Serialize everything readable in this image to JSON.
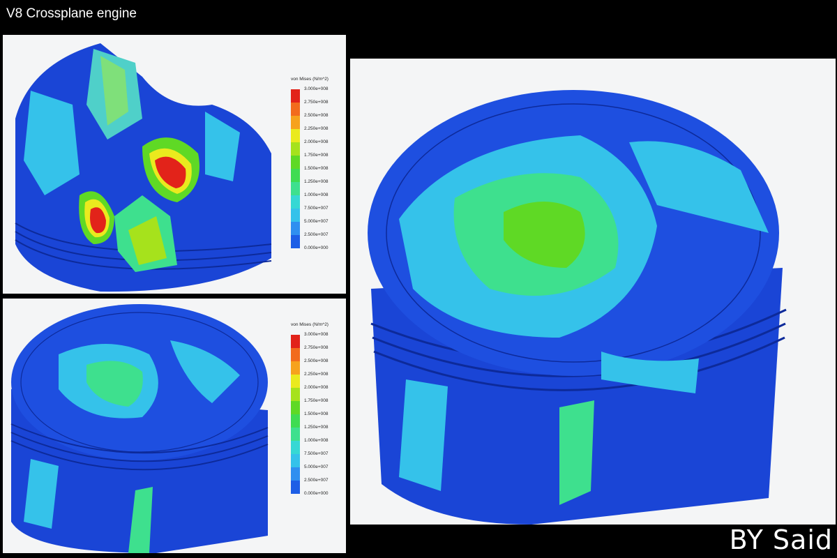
{
  "header": {
    "title": "V8 Crossplane engine"
  },
  "footer": {
    "credit": "BY Said"
  },
  "legend": {
    "title": "von Mises (N/m^2)",
    "labels": [
      "3.000e+008",
      "2.750e+008",
      "2.500e+008",
      "2.250e+008",
      "2.000e+008",
      "1.750e+008",
      "1.500e+008",
      "1.250e+008",
      "1.000e+008",
      "7.500e+007",
      "5.000e+007",
      "2.500e+007",
      "0.000e+000"
    ],
    "colors": [
      "#e2231a",
      "#f26b1d",
      "#f6a21d",
      "#eaea1e",
      "#a6e21c",
      "#5fd925",
      "#3fdc52",
      "#3ee08e",
      "#36d8d4",
      "#35c2ea",
      "#2f8ff0",
      "#1d5ee6",
      "#1234c8"
    ]
  },
  "colors": {
    "background": "#000000",
    "panel": "#f4f5f6",
    "low": "#1844d9",
    "mid": "#3fc7e6",
    "high": "#e2231a"
  }
}
